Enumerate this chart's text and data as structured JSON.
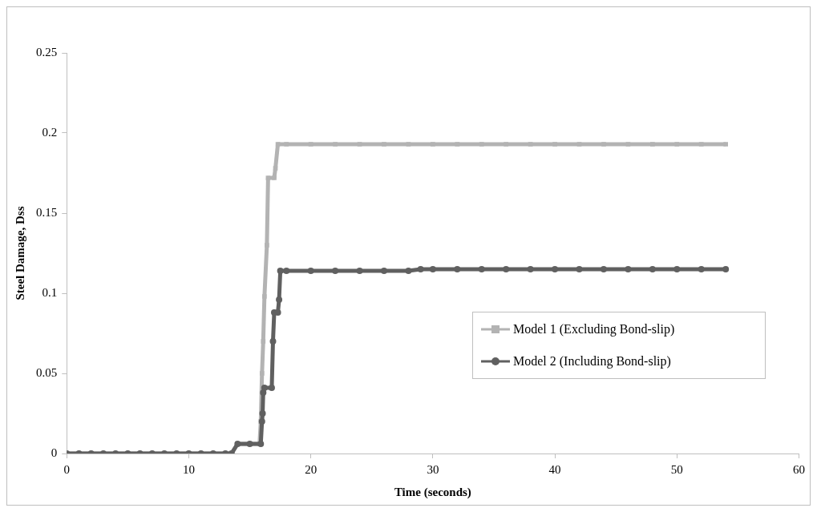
{
  "chart_data": {
    "type": "line",
    "xlabel": "Time (seconds)",
    "ylabel": "Steel Damage, Dss",
    "xlim": [
      0,
      60
    ],
    "xticks": [
      0,
      10,
      20,
      30,
      40,
      50,
      60
    ],
    "ylim": [
      0,
      0.25
    ],
    "yticks": [
      0,
      0.05,
      0.1,
      0.15,
      0.2,
      0.25
    ],
    "grid": false,
    "legend": "right",
    "series": [
      {
        "name": "Model 1 (Excluding Bond-slip)",
        "color": "#b3b3b3",
        "marker": "square",
        "x": [
          0,
          1,
          2,
          3,
          4,
          5,
          6,
          7,
          8,
          9,
          10,
          11,
          12,
          13,
          13.5,
          14,
          15,
          15.8,
          15.9,
          16,
          16.1,
          16.2,
          16.4,
          16.5,
          17,
          17.1,
          17.3,
          18,
          20,
          22,
          24,
          26,
          28,
          30,
          32,
          34,
          36,
          38,
          40,
          42,
          44,
          46,
          48,
          50,
          52,
          54
        ],
        "values": [
          0,
          0,
          0,
          0,
          0,
          0,
          0,
          0,
          0,
          0,
          0,
          0,
          0,
          0,
          0,
          0.006,
          0.006,
          0.006,
          0.02,
          0.05,
          0.07,
          0.098,
          0.13,
          0.172,
          0.172,
          0.178,
          0.193,
          0.193,
          0.193,
          0.193,
          0.193,
          0.193,
          0.193,
          0.193,
          0.193,
          0.193,
          0.193,
          0.193,
          0.193,
          0.193,
          0.193,
          0.193,
          0.193,
          0.193,
          0.193,
          0.193
        ]
      },
      {
        "name": "Model 2 (Including Bond-slip)",
        "color": "#606060",
        "marker": "circle",
        "x": [
          0,
          1,
          2,
          3,
          4,
          5,
          6,
          7,
          8,
          9,
          10,
          11,
          12,
          13,
          13.5,
          14,
          15,
          15.9,
          16,
          16.05,
          16.1,
          16.2,
          16.8,
          16.9,
          17,
          17.3,
          17.4,
          17.5,
          18,
          20,
          22,
          24,
          26,
          28,
          29,
          30,
          32,
          34,
          36,
          38,
          40,
          42,
          44,
          46,
          48,
          50,
          52,
          54
        ],
        "values": [
          0,
          0,
          0,
          0,
          0,
          0,
          0,
          0,
          0,
          0,
          0,
          0,
          0,
          0,
          0,
          0.006,
          0.006,
          0.006,
          0.02,
          0.025,
          0.038,
          0.041,
          0.041,
          0.07,
          0.088,
          0.088,
          0.096,
          0.114,
          0.114,
          0.114,
          0.114,
          0.114,
          0.114,
          0.114,
          0.115,
          0.115,
          0.115,
          0.115,
          0.115,
          0.115,
          0.115,
          0.115,
          0.115,
          0.115,
          0.115,
          0.115,
          0.115,
          0.115
        ]
      }
    ]
  }
}
